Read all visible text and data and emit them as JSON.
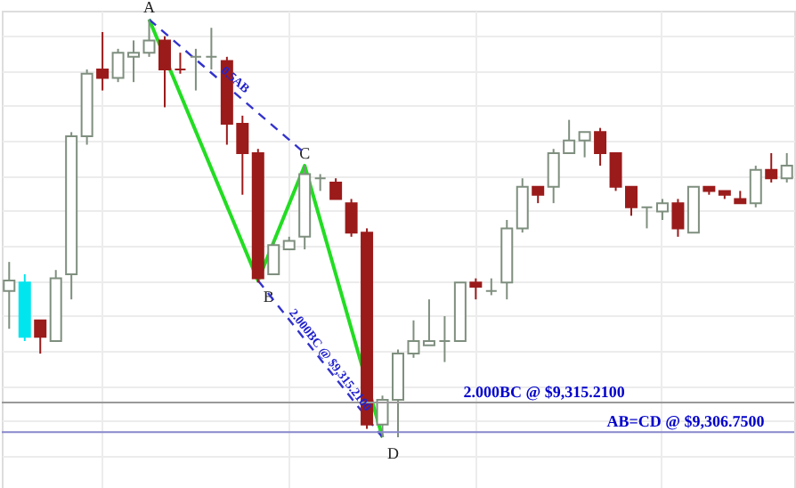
{
  "chart_data": {
    "type": "candlestick",
    "grid": true,
    "tick_labels": false,
    "ylim": [
      9290.8,
      9427.2
    ],
    "categories": [
      null,
      null,
      null,
      null,
      null,
      null,
      null,
      null,
      null,
      null,
      null,
      null,
      null,
      null,
      null,
      null,
      null,
      null,
      null,
      null,
      null,
      null,
      null,
      null,
      null,
      null,
      null,
      null,
      null,
      null,
      null,
      null,
      null,
      null,
      null,
      null,
      null,
      null,
      null,
      null,
      null,
      null,
      null,
      null,
      null,
      null,
      null,
      null,
      null,
      null,
      null
    ],
    "ohlc": [
      [
        9347.1,
        9355.4,
        9336.3,
        9350.1
      ],
      [
        9349.5,
        9351.9,
        9332.8,
        9334.0
      ],
      [
        9338.7,
        9338.7,
        9329.2,
        9334.0
      ],
      [
        9332.8,
        9353.1,
        9332.8,
        9350.7
      ],
      [
        9351.9,
        9392.5,
        9344.7,
        9391.3
      ],
      [
        9391.3,
        9410.4,
        9388.9,
        9409.2
      ],
      [
        9410.4,
        9421.1,
        9404.4,
        9408.0
      ],
      [
        9408.0,
        9416.3,
        9406.8,
        9415.2
      ],
      [
        9414.0,
        9418.7,
        9406.8,
        9415.2
      ],
      [
        9415.2,
        9424.7,
        9414.0,
        9418.7
      ],
      [
        9418.7,
        9419.9,
        9399.6,
        9410.4
      ],
      [
        9410.4,
        9415.2,
        9409.2,
        9410.4
      ],
      [
        9414.0,
        9416.3,
        9404.4,
        9414.0
      ],
      [
        9414.0,
        9422.3,
        9410.4,
        9414.0
      ],
      [
        9412.8,
        9414.0,
        9388.9,
        9394.9
      ],
      [
        9394.9,
        9397.2,
        9374.6,
        9386.5
      ],
      [
        9386.5,
        9387.7,
        9349.5,
        9350.7
      ],
      [
        9351.9,
        9361.4,
        9351.9,
        9360.2
      ],
      [
        9359.0,
        9362.6,
        9359.0,
        9361.4
      ],
      [
        9362.6,
        9382.9,
        9359.0,
        9380.5
      ],
      [
        9379.3,
        9380.5,
        9375.7,
        9379.3
      ],
      [
        9378.1,
        9379.3,
        9373.4,
        9373.4
      ],
      [
        9372.2,
        9373.4,
        9362.6,
        9363.8
      ],
      [
        9363.8,
        9365.0,
        9307.7,
        9308.9
      ],
      [
        9308.9,
        9317.2,
        9305.3,
        9316.0
      ],
      [
        9316.0,
        9330.4,
        9305.3,
        9329.2
      ],
      [
        9329.2,
        9338.7,
        9328.0,
        9332.8
      ],
      [
        9331.6,
        9344.7,
        9331.6,
        9332.8
      ],
      [
        9332.8,
        9339.9,
        9326.8,
        9332.8
      ],
      [
        9332.8,
        9349.5,
        9332.8,
        9349.5
      ],
      [
        9349.5,
        9350.7,
        9344.7,
        9348.3
      ],
      [
        9347.1,
        9350.7,
        9345.9,
        9347.1
      ],
      [
        9349.5,
        9367.4,
        9344.7,
        9365.0
      ],
      [
        9365.0,
        9379.3,
        9363.8,
        9376.9
      ],
      [
        9376.9,
        9376.9,
        9372.2,
        9374.6
      ],
      [
        9376.9,
        9387.7,
        9372.2,
        9386.5
      ],
      [
        9386.5,
        9396.0,
        9386.5,
        9390.1
      ],
      [
        9390.1,
        9392.5,
        9385.3,
        9392.5
      ],
      [
        9392.5,
        9393.7,
        9382.9,
        9386.5
      ],
      [
        9386.5,
        9386.5,
        9375.7,
        9376.9
      ],
      [
        9376.9,
        9376.9,
        9368.6,
        9371.0
      ],
      [
        9371.0,
        9371.0,
        9365.0,
        9371.0
      ],
      [
        9369.8,
        9373.4,
        9367.4,
        9372.2
      ],
      [
        9372.2,
        9373.4,
        9362.6,
        9365.0
      ],
      [
        9363.8,
        9376.9,
        9363.8,
        9376.9
      ],
      [
        9376.9,
        9376.9,
        9374.6,
        9375.7
      ],
      [
        9375.7,
        9375.7,
        9373.4,
        9374.6
      ],
      [
        9373.4,
        9375.7,
        9372.2,
        9372.2
      ],
      [
        9372.2,
        9382.9,
        9371.0,
        9381.7
      ],
      [
        9381.7,
        9386.5,
        9378.1,
        9379.3
      ],
      [
        9379.3,
        9386.5,
        9378.1,
        9382.9
      ]
    ],
    "colors": [
      "#7f8f7f",
      "#00e5ee",
      "#9b1b1b",
      "#7f8f7f",
      "#7f8f7f",
      "#7f8f7f",
      "#9b1b1b",
      "#7f8f7f",
      "#7f8f7f",
      "#7f8f7f",
      "#9b1b1b",
      "#9b1b1b",
      "#7f8f7f",
      "#7f8f7f",
      "#9b1b1b",
      "#9b1b1b",
      "#9b1b1b",
      "#7f8f7f",
      "#7f8f7f",
      "#7f8f7f",
      "#7f8f7f",
      "#9b1b1b",
      "#9b1b1b",
      "#9b1b1b",
      "#7f8f7f",
      "#7f8f7f",
      "#7f8f7f",
      "#7f8f7f",
      "#7f8f7f",
      "#7f8f7f",
      "#9b1b1b",
      "#7f8f7f",
      "#7f8f7f",
      "#7f8f7f",
      "#9b1b1b",
      "#7f8f7f",
      "#7f8f7f",
      "#7f8f7f",
      "#9b1b1b",
      "#9b1b1b",
      "#9b1b1b",
      "#7f8f7f",
      "#7f8f7f",
      "#9b1b1b",
      "#7f8f7f",
      "#9b1b1b",
      "#9b1b1b",
      "#9b1b1b",
      "#7f8f7f",
      "#9b1b1b",
      "#7f8f7f"
    ],
    "series": [
      {
        "type": "line",
        "color": "#22dd22",
        "line_style": "solid",
        "values": [
          null,
          null,
          null,
          null,
          null,
          null,
          null,
          null,
          null,
          9424.7,
          null,
          null,
          null,
          null,
          null,
          null,
          9350.1,
          null,
          null,
          9382.9,
          null,
          null,
          null,
          null,
          9305.3,
          null,
          null,
          null,
          null,
          null,
          null,
          null,
          null,
          null,
          null,
          null,
          null,
          null,
          null,
          null,
          null,
          null,
          null,
          null,
          null,
          null,
          null,
          null,
          null,
          null,
          null
        ],
        "value_labels": [
          null,
          null,
          null,
          null,
          null,
          null,
          null,
          null,
          null,
          "A",
          null,
          null,
          null,
          null,
          null,
          null,
          "B",
          null,
          null,
          "C",
          null,
          null,
          null,
          null,
          "D",
          null,
          null,
          null,
          null,
          null,
          null,
          null,
          null,
          null,
          null,
          null,
          null,
          null,
          null,
          null,
          null,
          null,
          null,
          null,
          null,
          null,
          null,
          null,
          null,
          null,
          null
        ]
      },
      {
        "type": "line",
        "color": "#3333cc",
        "line_style": "dashed",
        "values": [
          null,
          null,
          null,
          null,
          null,
          null,
          null,
          null,
          null,
          9424.7,
          null,
          null,
          null,
          null,
          null,
          null,
          null,
          null,
          null,
          9386.5,
          null,
          null,
          null,
          null,
          null,
          null,
          null,
          null,
          null,
          null,
          null,
          null,
          null,
          null,
          null,
          null,
          null,
          null,
          null,
          null,
          null,
          null,
          null,
          null,
          null,
          null,
          null,
          null,
          null,
          null,
          null
        ]
      },
      {
        "type": "line",
        "color": "#3333cc",
        "line_style": "dashed",
        "values": [
          null,
          null,
          null,
          null,
          null,
          null,
          null,
          null,
          null,
          null,
          null,
          null,
          null,
          null,
          null,
          null,
          9350.1,
          null,
          null,
          null,
          null,
          null,
          null,
          null,
          9305.3,
          null,
          null,
          null,
          null,
          null,
          null,
          null,
          null,
          null,
          null,
          null,
          null,
          null,
          null,
          null,
          null,
          null,
          null,
          null,
          null,
          null,
          null,
          null,
          null,
          null,
          null
        ]
      }
    ],
    "ref_lines": [
      {
        "axis": "y",
        "value": 9315.21,
        "label": "2.000BC @ $9,315.2100",
        "color": "#999999"
      },
      {
        "axis": "y",
        "value": 9306.75,
        "label": "AB=CD @ $9,306.7500",
        "color": "#8888cc"
      }
    ],
    "annotations": [
      "0.5AB",
      "2.000BC @ $9,315.2100"
    ]
  }
}
